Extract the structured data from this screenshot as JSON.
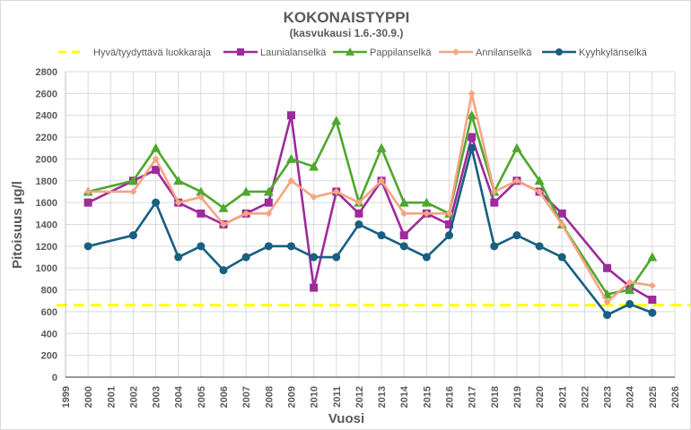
{
  "chart_data": {
    "type": "line",
    "title": "KOKONAISTYPPI",
    "subtitle": "(kasvukausi 1.6.-30.9.)",
    "xlabel": "Vuosi",
    "ylabel": "Pitoisuus µg/l",
    "xlim": [
      1999,
      2026
    ],
    "ylim": [
      0,
      2800
    ],
    "x_ticks": [
      "1999",
      "2000",
      "2001",
      "2002",
      "2003",
      "2004",
      "2005",
      "2006",
      "2007",
      "2008",
      "2009",
      "2010",
      "2011",
      "2012",
      "2013",
      "2014",
      "2015",
      "2016",
      "2017",
      "2018",
      "2019",
      "2020",
      "2021",
      "2022",
      "2023",
      "2024",
      "2025",
      "2026"
    ],
    "y_ticks": [
      "0",
      "200",
      "400",
      "600",
      "800",
      "1000",
      "1200",
      "1400",
      "1600",
      "1800",
      "2000",
      "2200",
      "2400",
      "2600",
      "2800"
    ],
    "grid": true,
    "legend_position": "top",
    "reference_line": {
      "name": "Hyvä/tyydyttävä luokkaraja",
      "value": 660,
      "color": "#FFFF00",
      "style": "dashed"
    },
    "series": [
      {
        "name": "Launialanselkä",
        "color": "#9E2A9C",
        "marker": "square",
        "x": [
          2000,
          2002,
          2003,
          2004,
          2005,
          2006,
          2007,
          2008,
          2009,
          2010,
          2011,
          2012,
          2013,
          2014,
          2015,
          2016,
          2017,
          2018,
          2019,
          2020,
          2021,
          2023,
          2024,
          2025
        ],
        "values": [
          1600,
          1800,
          1900,
          1600,
          1500,
          1400,
          1500,
          1600,
          2400,
          820,
          1700,
          1500,
          1800,
          1300,
          1500,
          1400,
          2200,
          1600,
          1800,
          1700,
          1500,
          1000,
          830,
          710
        ]
      },
      {
        "name": "Pappilanselkä",
        "color": "#4EA72E",
        "marker": "triangle",
        "x": [
          2000,
          2002,
          2003,
          2004,
          2005,
          2006,
          2007,
          2008,
          2009,
          2010,
          2011,
          2012,
          2013,
          2014,
          2015,
          2016,
          2017,
          2018,
          2019,
          2020,
          2021,
          2023,
          2024,
          2025
        ],
        "values": [
          1700,
          1800,
          2100,
          1800,
          1700,
          1550,
          1700,
          1700,
          2000,
          1930,
          2350,
          1600,
          2100,
          1600,
          1600,
          1500,
          2400,
          1700,
          2100,
          1800,
          1400,
          760,
          800,
          1100
        ]
      },
      {
        "name": "Annilanselkä",
        "color": "#F4A582",
        "marker": "diamond",
        "x": [
          2000,
          2002,
          2003,
          2004,
          2005,
          2006,
          2007,
          2008,
          2009,
          2010,
          2011,
          2012,
          2013,
          2014,
          2015,
          2016,
          2017,
          2018,
          2019,
          2020,
          2021,
          2023,
          2024,
          2025
        ],
        "values": [
          1700,
          1700,
          2000,
          1600,
          1650,
          1400,
          1500,
          1500,
          1800,
          1650,
          1700,
          1600,
          1800,
          1500,
          1500,
          1500,
          2600,
          1700,
          1800,
          1700,
          1400,
          690,
          870,
          840
        ]
      },
      {
        "name": "Kyyhkylänselkä",
        "color": "#185F80",
        "marker": "circle",
        "x": [
          2000,
          2002,
          2003,
          2004,
          2005,
          2006,
          2007,
          2008,
          2009,
          2010,
          2011,
          2012,
          2013,
          2014,
          2015,
          2016,
          2017,
          2018,
          2019,
          2020,
          2021,
          2023,
          2024,
          2025
        ],
        "values": [
          1200,
          1300,
          1600,
          1100,
          1200,
          980,
          1100,
          1200,
          1200,
          1100,
          1100,
          1400,
          1300,
          1200,
          1100,
          1300,
          2100,
          1200,
          1300,
          1200,
          1100,
          570,
          670,
          590
        ]
      }
    ]
  }
}
